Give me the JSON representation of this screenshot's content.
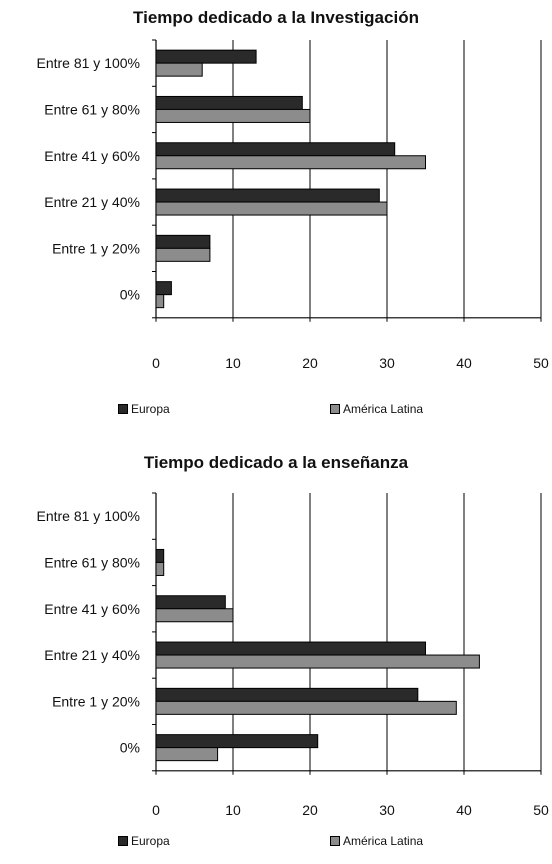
{
  "chart_data": [
    {
      "type": "bar",
      "orientation": "horizontal",
      "title": "Tiempo dedicado a la Investigación",
      "categories": [
        "Entre 81 y 100%",
        "Entre 61 y 80%",
        "Entre 41 y 60%",
        "Entre 21 y 40%",
        "Entre 1 y 20%",
        "0%"
      ],
      "series": [
        {
          "name": "Europa",
          "values": [
            13,
            19,
            31,
            29,
            7,
            2
          ],
          "color": "#2a2a2a"
        },
        {
          "name": "América Latina",
          "values": [
            6,
            20,
            35,
            30,
            7,
            1
          ],
          "color": "#8c8c8c"
        }
      ],
      "xlim": [
        0,
        50
      ],
      "xticks": [
        0,
        10,
        20,
        30,
        40,
        50
      ],
      "grid": "vertical",
      "legend_position": "bottom"
    },
    {
      "type": "bar",
      "orientation": "horizontal",
      "title": "Tiempo dedicado a la enseñanza",
      "categories": [
        "Entre 81 y 100%",
        "Entre 61 y 80%",
        "Entre 41 y 60%",
        "Entre 21 y 40%",
        "Entre 1 y 20%",
        "0%"
      ],
      "series": [
        {
          "name": "Europa",
          "values": [
            0,
            1,
            9,
            35,
            34,
            21
          ],
          "color": "#2a2a2a"
        },
        {
          "name": "América Latina",
          "values": [
            0,
            1,
            10,
            42,
            39,
            8
          ],
          "color": "#8c8c8c"
        }
      ],
      "xlim": [
        0,
        50
      ],
      "xticks": [
        0,
        10,
        20,
        30,
        40,
        50
      ],
      "grid": "vertical",
      "legend_position": "bottom"
    }
  ]
}
